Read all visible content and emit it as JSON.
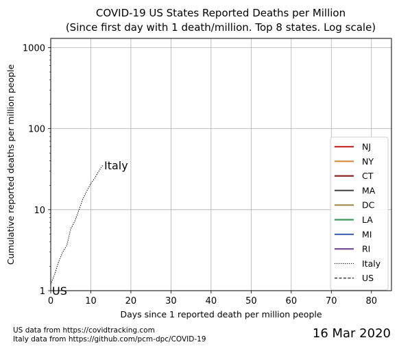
{
  "chart_data": {
    "type": "line",
    "title": "COVID-19 US States Reported Deaths per Million",
    "subtitle": "(Since first day with 1 death/million. Top 8 states. Log scale)",
    "xlabel": "Days since 1 reported death per million people",
    "ylabel": "Cumulative reported deaths per million people",
    "xlim": [
      0,
      85
    ],
    "ylim": [
      1,
      1300
    ],
    "y_scale": "log",
    "x_ticks": [
      0,
      10,
      20,
      30,
      40,
      50,
      60,
      70,
      80
    ],
    "x_tick_labels": [
      "0",
      "10",
      "20",
      "30",
      "40",
      "50",
      "60",
      "70",
      "80"
    ],
    "y_ticks": [
      1,
      10,
      100,
      1000
    ],
    "y_tick_labels": [
      "1",
      "10",
      "100",
      "1000"
    ],
    "grid": true,
    "legend_position": "right",
    "series": [
      {
        "name": "NJ",
        "color": "#c62d2d",
        "style": "solid",
        "x": [],
        "y": []
      },
      {
        "name": "NY",
        "color": "#d88a3f",
        "style": "solid",
        "x": [],
        "y": []
      },
      {
        "name": "CT",
        "color": "#8e2323",
        "style": "solid",
        "x": [],
        "y": []
      },
      {
        "name": "MA",
        "color": "#555555",
        "style": "solid",
        "x": [],
        "y": []
      },
      {
        "name": "DC",
        "color": "#a38b47",
        "style": "solid",
        "x": [],
        "y": []
      },
      {
        "name": "LA",
        "color": "#3d9a5a",
        "style": "solid",
        "x": [],
        "y": []
      },
      {
        "name": "MI",
        "color": "#3c63ad",
        "style": "solid",
        "x": [],
        "y": []
      },
      {
        "name": "RI",
        "color": "#7a4f9e",
        "style": "solid",
        "x": [],
        "y": []
      },
      {
        "name": "Italy",
        "color": "#000000",
        "style": "dotted",
        "x": [
          0,
          1,
          2,
          3,
          4,
          5,
          6,
          7,
          8,
          9,
          10,
          11,
          12,
          13
        ],
        "y": [
          1.2,
          1.6,
          2.3,
          3.0,
          3.6,
          5.8,
          7.2,
          9.8,
          13.5,
          17.0,
          21.0,
          24.5,
          30.0,
          35.5
        ]
      },
      {
        "name": "US",
        "color": "#000000",
        "style": "dashed",
        "x": [],
        "y": []
      }
    ],
    "annotations": [
      {
        "text": "Italy",
        "x": 13,
        "y": 35.5
      },
      {
        "text": "US",
        "x": 0,
        "y": 1
      }
    ]
  },
  "footnotes": [
    "US data from https://covidtracking.com",
    "Italy data from https://github.com/pcm-dpc/COVID-19"
  ],
  "date_stamp": "16 Mar 2020"
}
